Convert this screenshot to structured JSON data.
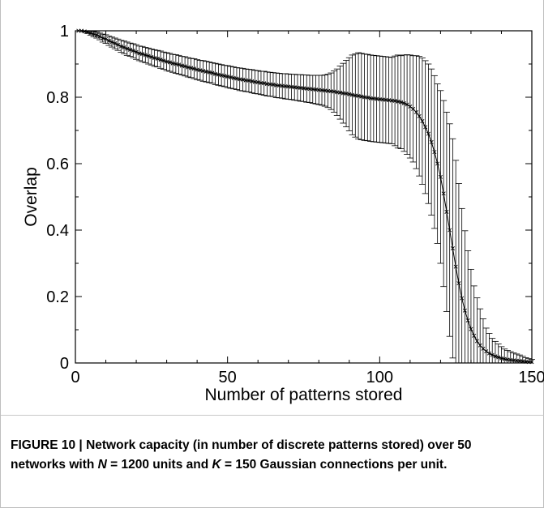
{
  "chart_data": {
    "type": "line",
    "title": "",
    "xlabel": "Number of patterns stored",
    "ylabel": "Overlap",
    "xlim": [
      0,
      150
    ],
    "ylim": [
      0,
      1
    ],
    "xticks": [
      0,
      50,
      100,
      150
    ],
    "yticks": [
      0,
      0.2,
      0.4,
      0.6,
      0.8,
      1
    ],
    "xtick_labels": [
      "0",
      "50",
      "100",
      "150"
    ],
    "ytick_labels": [
      "0",
      "0.2",
      "0.4",
      "0.6",
      "0.8",
      "1"
    ],
    "grid": false,
    "marker": "x",
    "error_bars": true,
    "series": [
      {
        "x": [
          1,
          2,
          3,
          4,
          5,
          6,
          7,
          8,
          9,
          10,
          11,
          12,
          13,
          14,
          15,
          16,
          17,
          18,
          19,
          20,
          21,
          22,
          23,
          24,
          25,
          26,
          27,
          28,
          29,
          30,
          31,
          32,
          33,
          34,
          35,
          36,
          37,
          38,
          39,
          40,
          41,
          42,
          43,
          44,
          45,
          46,
          47,
          48,
          49,
          50,
          51,
          52,
          53,
          54,
          55,
          56,
          57,
          58,
          59,
          60,
          61,
          62,
          63,
          64,
          65,
          66,
          67,
          68,
          69,
          70,
          71,
          72,
          73,
          74,
          75,
          76,
          77,
          78,
          79,
          80,
          81,
          82,
          83,
          84,
          85,
          86,
          87,
          88,
          89,
          90,
          91,
          92,
          93,
          94,
          95,
          96,
          97,
          98,
          99,
          100,
          101,
          102,
          103,
          104,
          105,
          106,
          107,
          108,
          109,
          110,
          111,
          112,
          113,
          114,
          115,
          116,
          117,
          118,
          119,
          120,
          121,
          122,
          123,
          124,
          125,
          126,
          127,
          128,
          129,
          130,
          131,
          132,
          133,
          134,
          135,
          136,
          137,
          138,
          139,
          140,
          141,
          142,
          143,
          144,
          145,
          146,
          147,
          148,
          149,
          150
        ],
        "y": [
          1.0,
          1.0,
          0.998,
          0.996,
          0.993,
          0.99,
          0.987,
          0.983,
          0.978,
          0.975,
          0.97,
          0.966,
          0.962,
          0.958,
          0.953,
          0.95,
          0.946,
          0.943,
          0.94,
          0.936,
          0.932,
          0.93,
          0.927,
          0.924,
          0.921,
          0.918,
          0.916,
          0.913,
          0.91,
          0.907,
          0.905,
          0.902,
          0.9,
          0.898,
          0.895,
          0.893,
          0.89,
          0.888,
          0.886,
          0.883,
          0.881,
          0.879,
          0.877,
          0.875,
          0.873,
          0.87,
          0.868,
          0.866,
          0.864,
          0.862,
          0.86,
          0.858,
          0.856,
          0.854,
          0.853,
          0.851,
          0.85,
          0.848,
          0.846,
          0.845,
          0.843,
          0.842,
          0.84,
          0.839,
          0.838,
          0.836,
          0.835,
          0.834,
          0.833,
          0.832,
          0.831,
          0.83,
          0.829,
          0.828,
          0.827,
          0.826,
          0.825,
          0.824,
          0.823,
          0.822,
          0.821,
          0.82,
          0.819,
          0.818,
          0.817,
          0.815,
          0.814,
          0.812,
          0.811,
          0.809,
          0.807,
          0.805,
          0.804,
          0.802,
          0.8,
          0.799,
          0.797,
          0.796,
          0.795,
          0.794,
          0.793,
          0.792,
          0.791,
          0.79,
          0.789,
          0.787,
          0.785,
          0.782,
          0.778,
          0.772,
          0.765,
          0.755,
          0.743,
          0.728,
          0.71,
          0.69,
          0.665,
          0.635,
          0.6,
          0.56,
          0.51,
          0.455,
          0.4,
          0.345,
          0.29,
          0.24,
          0.195,
          0.158,
          0.128,
          0.102,
          0.082,
          0.066,
          0.053,
          0.043,
          0.035,
          0.029,
          0.024,
          0.02,
          0.017,
          0.014,
          0.012,
          0.01,
          0.009,
          0.008,
          0.007,
          0.006,
          0.005,
          0.004,
          0.003,
          0.003
        ],
        "err": [
          0.0,
          0.0,
          0.002,
          0.004,
          0.006,
          0.008,
          0.009,
          0.01,
          0.012,
          0.013,
          0.014,
          0.015,
          0.016,
          0.017,
          0.018,
          0.019,
          0.02,
          0.02,
          0.021,
          0.022,
          0.022,
          0.023,
          0.023,
          0.024,
          0.024,
          0.025,
          0.025,
          0.026,
          0.026,
          0.027,
          0.027,
          0.027,
          0.028,
          0.028,
          0.028,
          0.029,
          0.029,
          0.029,
          0.03,
          0.03,
          0.03,
          0.031,
          0.031,
          0.031,
          0.031,
          0.032,
          0.032,
          0.032,
          0.032,
          0.033,
          0.033,
          0.033,
          0.033,
          0.034,
          0.034,
          0.034,
          0.034,
          0.035,
          0.035,
          0.035,
          0.035,
          0.036,
          0.036,
          0.036,
          0.036,
          0.037,
          0.037,
          0.037,
          0.038,
          0.038,
          0.038,
          0.039,
          0.039,
          0.04,
          0.04,
          0.041,
          0.041,
          0.042,
          0.043,
          0.044,
          0.045,
          0.047,
          0.05,
          0.055,
          0.062,
          0.07,
          0.08,
          0.09,
          0.1,
          0.11,
          0.12,
          0.125,
          0.13,
          0.13,
          0.13,
          0.13,
          0.13,
          0.13,
          0.13,
          0.13,
          0.13,
          0.13,
          0.13,
          0.13,
          0.135,
          0.14,
          0.14,
          0.145,
          0.15,
          0.155,
          0.16,
          0.17,
          0.18,
          0.19,
          0.2,
          0.21,
          0.22,
          0.23,
          0.24,
          0.26,
          0.28,
          0.3,
          0.32,
          0.33,
          0.32,
          0.3,
          0.27,
          0.24,
          0.21,
          0.18,
          0.15,
          0.13,
          0.11,
          0.09,
          0.07,
          0.06,
          0.05,
          0.045,
          0.04,
          0.035,
          0.03,
          0.028,
          0.025,
          0.022,
          0.02,
          0.018,
          0.015,
          0.012,
          0.01,
          0.008
        ]
      }
    ]
  },
  "caption": {
    "label": "FIGURE 10 | ",
    "text_1": "Network capacity (in number of discrete patterns stored) over 50 networks with ",
    "var_n": "N",
    "text_2": " = 1200 units and ",
    "var_k": "K",
    "text_3": " = 150 Gaussian connections per unit."
  },
  "colors": {
    "line": "#000000",
    "axis": "#000000",
    "background": "#ffffff"
  }
}
